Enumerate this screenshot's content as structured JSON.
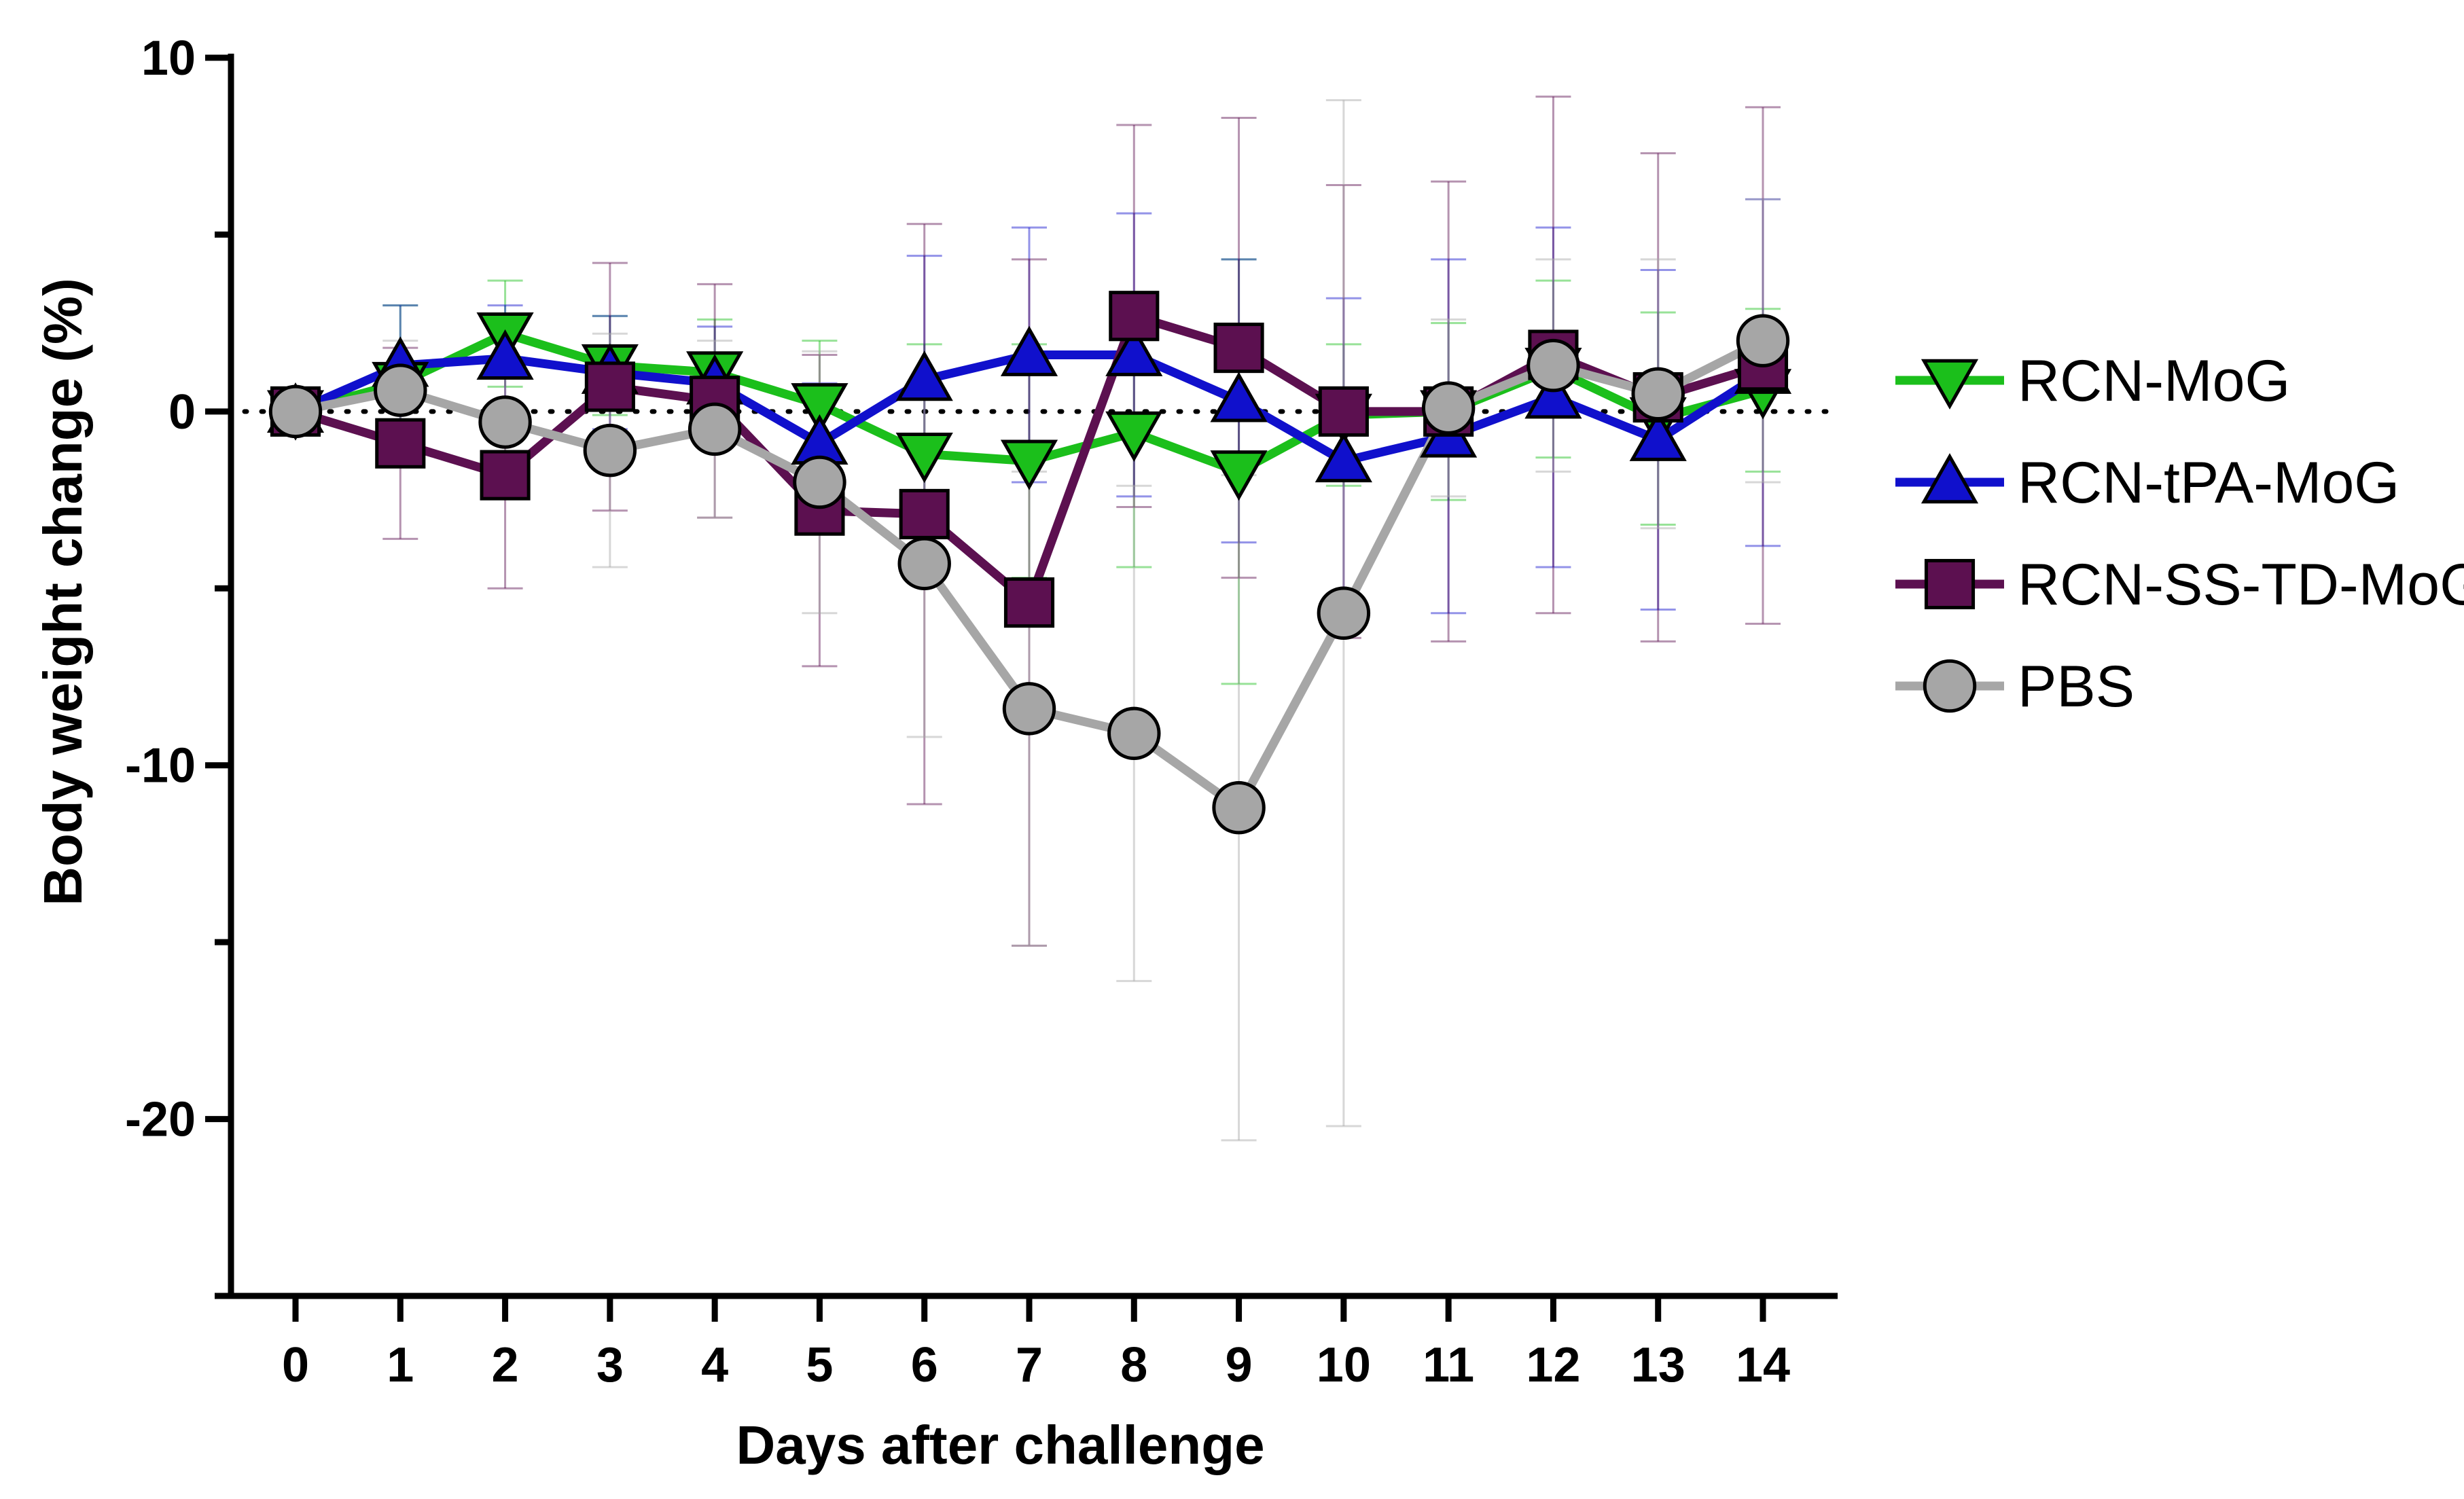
{
  "chart_data": {
    "type": "line",
    "title": "",
    "xlabel": "Days after challenge",
    "ylabel": "Body weight change (%)",
    "x": [
      0,
      1,
      2,
      3,
      4,
      5,
      6,
      7,
      8,
      9,
      10,
      11,
      12,
      13,
      14
    ],
    "xticks": [
      "0",
      "1",
      "2",
      "3",
      "4",
      "5",
      "6",
      "7",
      "8",
      "9",
      "10",
      "11",
      "12",
      "13",
      "14"
    ],
    "ylim": [
      -25,
      10
    ],
    "yticks": [
      10,
      0,
      -10,
      -20
    ],
    "ytick_labels": [
      "10",
      "0",
      "-10",
      "-20"
    ],
    "reference_line": {
      "y": 0,
      "style": "dotted"
    },
    "legend_position": "right",
    "series": [
      {
        "name": "RCN-MoG",
        "marker": "triangle-down",
        "color": "#1bbf1b",
        "values": [
          0,
          0.8,
          2.2,
          1.3,
          1.1,
          0.2,
          -1.2,
          -1.4,
          -0.6,
          -1.7,
          -0.1,
          0.0,
          1.2,
          -0.2,
          0.6
        ],
        "errors": [
          0,
          2.2,
          1.5,
          1.4,
          1.5,
          1.8,
          3.1,
          3.3,
          3.8,
          6.0,
          2.0,
          2.5,
          2.5,
          3.0,
          2.3
        ]
      },
      {
        "name": "RCN-tPA-MoG",
        "marker": "triangle-up",
        "color": "#1010cc",
        "values": [
          0,
          1.3,
          1.5,
          1.1,
          0.8,
          -0.9,
          0.9,
          1.6,
          1.6,
          0.3,
          -1.4,
          -0.7,
          0.4,
          -0.8,
          1.1
        ],
        "errors": [
          0,
          1.7,
          1.5,
          1.6,
          1.6,
          1.7,
          3.5,
          3.6,
          4.0,
          4.0,
          4.6,
          5.0,
          4.8,
          4.8,
          4.9
        ]
      },
      {
        "name": "RCN-SS-TD-MoG",
        "marker": "square",
        "color": "#5c1050",
        "values": [
          0,
          -0.9,
          -1.8,
          0.7,
          0.3,
          -2.8,
          -2.9,
          -5.4,
          2.7,
          1.8,
          0.0,
          0.0,
          1.6,
          0.4,
          1.3
        ],
        "errors": [
          0,
          2.7,
          3.2,
          3.5,
          3.3,
          4.4,
          8.2,
          9.7,
          5.4,
          6.5,
          6.4,
          6.5,
          7.3,
          6.9,
          7.3
        ]
      },
      {
        "name": "PBS",
        "marker": "circle",
        "color": "#a6a6a6",
        "values": [
          0,
          0.6,
          -0.3,
          -1.1,
          -0.5,
          -2.0,
          -4.3,
          -8.4,
          -9.1,
          -11.2,
          -5.7,
          0.1,
          1.3,
          0.5,
          2.0
        ],
        "errors": [
          0,
          1.4,
          1.6,
          3.3,
          2.5,
          3.7,
          4.9,
          6.7,
          7.0,
          9.4,
          14.5,
          2.5,
          3.0,
          3.8,
          4.0
        ]
      }
    ]
  }
}
